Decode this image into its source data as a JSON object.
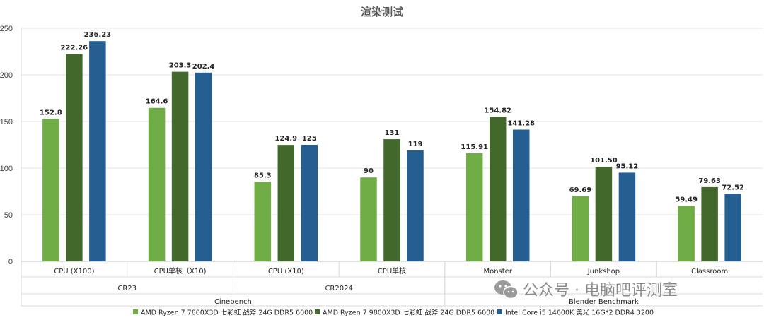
{
  "chart_data": {
    "type": "bar",
    "title": "渲染测试",
    "ylim": [
      0,
      250
    ],
    "yticks": [
      0,
      50,
      100,
      150,
      200,
      250
    ],
    "categories": [
      "CPU (X100)",
      "CPU单核（X10)",
      "CPU (X10)",
      "CPU单核",
      "Monster",
      "Junkshop",
      "Classroom"
    ],
    "subgroups": [
      {
        "label": "CR23",
        "span": [
          0,
          1
        ]
      },
      {
        "label": "CR2024",
        "span": [
          2,
          3
        ]
      }
    ],
    "groups": [
      {
        "label": "Cinebench",
        "span": [
          0,
          3
        ]
      },
      {
        "label": "Blender Benchmark",
        "span": [
          4,
          6
        ]
      }
    ],
    "series": [
      {
        "name": "AMD Ryzen 7 7800X3D 七彩虹 战斧 24G DDR5 6000",
        "color": "#70ad47",
        "values": [
          152.8,
          164.6,
          85.3,
          90,
          115.91,
          69.69,
          59.49
        ],
        "labels": [
          "152.8",
          "164.6",
          "85.3",
          "90",
          "115.91",
          "69.69",
          "59.49"
        ]
      },
      {
        "name": "AMD Ryzen 7 9800X3D 七彩虹 战斧 24G DDR5 6000",
        "color": "#43682b",
        "values": [
          222.26,
          203.3,
          124.9,
          131,
          154.82,
          101.5,
          79.63
        ],
        "labels": [
          "222.26",
          "203.3",
          "124.9",
          "131",
          "154.82",
          "101.50",
          "79.63"
        ]
      },
      {
        "name": "Intel Core i5 14600K 美光 16G*2 DDR4 3200",
        "color": "#255e91",
        "values": [
          236.23,
          202.4,
          125,
          119,
          141.28,
          95.12,
          72.52
        ],
        "labels": [
          "236.23",
          "202.4",
          "125",
          "119",
          "141.28",
          "95.12",
          "72.52"
        ]
      }
    ]
  },
  "watermark": {
    "text": "公众号 · 电脑吧评测室",
    "icon": "wechat-icon"
  }
}
